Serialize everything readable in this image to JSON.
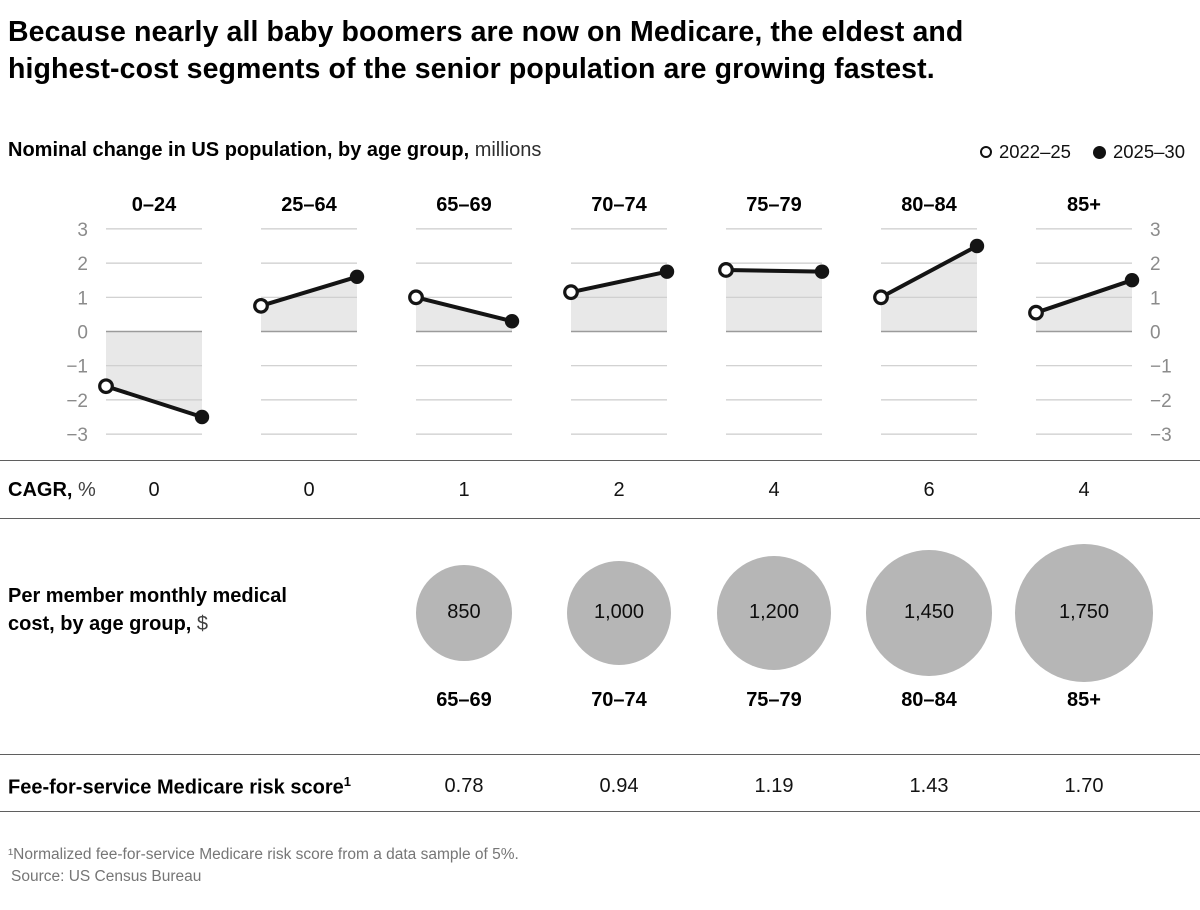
{
  "header": {
    "title_lines": [
      "Because nearly all baby boomers are now on Medicare, the eldest and",
      "highest-cost segments of the senior population are growing fastest."
    ]
  },
  "chart": {
    "subtitle_bold": "Nominal change in US population, by age group,",
    "subtitle_unit": "millions",
    "legend": [
      {
        "marker": "open-circle",
        "label": "2022–25"
      },
      {
        "marker": "filled-circle",
        "label": "2025–30"
      }
    ]
  },
  "chart_data": [
    {
      "type": "line",
      "subtype": "slope-small-multiples",
      "title": "Nominal change in US population, by age group, millions",
      "categories": [
        "0–24",
        "25–64",
        "65–69",
        "70–74",
        "75–79",
        "80–84",
        "85+"
      ],
      "series": [
        {
          "name": "2022–25",
          "values": [
            -1.6,
            0.75,
            1.0,
            1.15,
            1.8,
            1.0,
            0.55
          ]
        },
        {
          "name": "2025–30",
          "values": [
            -2.5,
            1.6,
            0.3,
            1.75,
            1.75,
            2.5,
            1.5
          ]
        }
      ],
      "ylim": [
        -3,
        3
      ],
      "yticks": [
        3,
        2,
        1,
        0,
        -1,
        -2,
        -3
      ],
      "ytick_labels": [
        "3",
        "2",
        "1",
        "0",
        "−1",
        "−2",
        "−3"
      ],
      "grid": true,
      "legend_position": "top-right",
      "area_fill_to_zero": true
    },
    {
      "type": "bubble",
      "title": "Per member monthly medical cost, by age group, $",
      "categories": [
        "65–69",
        "70–74",
        "75–79",
        "80–84",
        "85+"
      ],
      "values": [
        850,
        1000,
        1200,
        1450,
        1750
      ],
      "labels": [
        "850",
        "1,000",
        "1,200",
        "1,450",
        "1,750"
      ]
    },
    {
      "type": "table",
      "title": "Fee-for-service Medicare risk score",
      "categories": [
        "65–69",
        "70–74",
        "75–79",
        "80–84",
        "85+"
      ],
      "values": [
        0.78,
        0.94,
        1.19,
        1.43,
        1.7
      ],
      "labels": [
        "0.78",
        "0.94",
        "1.19",
        "1.43",
        "1.70"
      ]
    }
  ],
  "cagr_row": {
    "label_bold": "CAGR,",
    "label_unit": "%",
    "values": [
      "0",
      "0",
      "1",
      "2",
      "4",
      "6",
      "4"
    ]
  },
  "cost_row": {
    "label_bold": "Per member monthly medical cost, by age group,",
    "label_unit": "$"
  },
  "risk_row": {
    "label_bold": "Fee-for-service Medicare risk score",
    "label_sup": "1",
    "values": [
      "0.78",
      "0.94",
      "1.19",
      "1.43",
      "1.70"
    ]
  },
  "footer": {
    "footnote": "¹Normalized fee-for-service Medicare risk score from a data sample of 5%.",
    "source": "Source: US Census Bureau"
  },
  "style": {
    "line_color": "#141414",
    "area_fill": "#e8e8e8",
    "gridline": "#cccccc",
    "zero_line": "#9b9b9b",
    "axis_label_color": "#8b8b8b",
    "bubble_fill": "#b6b6b6",
    "rule_color": "#5f5f5f",
    "footnote_color": "#767676"
  }
}
